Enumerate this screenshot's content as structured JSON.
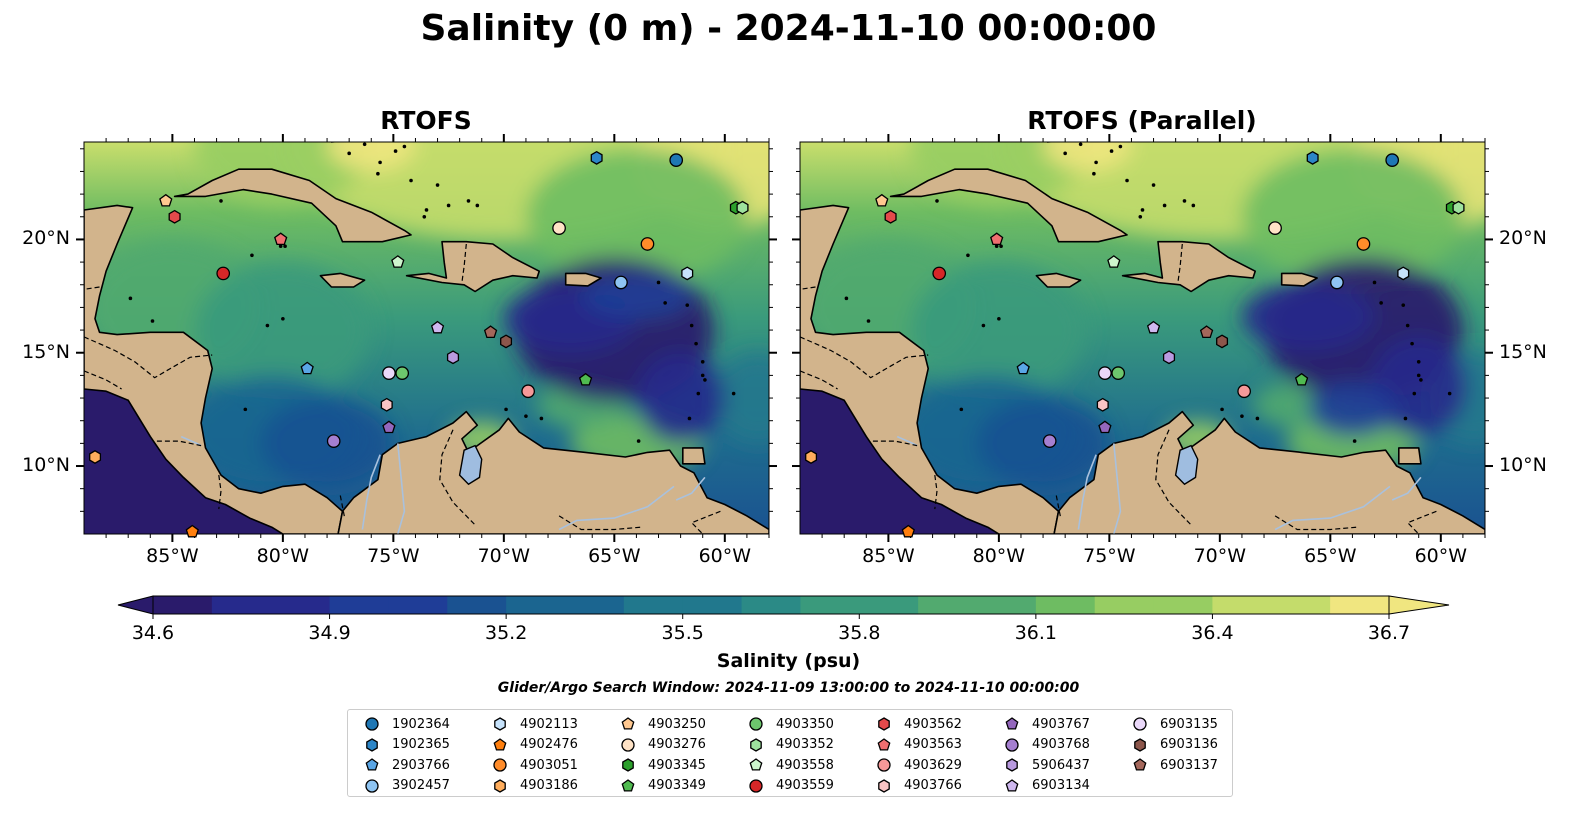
{
  "title": "Salinity (0 m) - 2024-11-10 00:00:00",
  "panels": [
    {
      "title": "RTOFS"
    },
    {
      "title": "RTOFS (Parallel)"
    }
  ],
  "map": {
    "lon_range": [
      -89,
      -58
    ],
    "lat_range": [
      7,
      24.3
    ],
    "lon_ticks": [
      "85°W",
      "80°W",
      "75°W",
      "70°W",
      "65°W",
      "60°W"
    ],
    "lat_ticks": [
      "10°N",
      "15°N",
      "20°N"
    ],
    "colors": {
      "land": "#d2b48c",
      "lake": "#9fbde0",
      "river": "#a9c1dd",
      "coast": "#000000"
    }
  },
  "colorbar": {
    "min": 34.6,
    "max": 36.7,
    "ticks": [
      "34.6",
      "34.9",
      "35.2",
      "35.5",
      "35.8",
      "36.1",
      "36.4",
      "36.7"
    ],
    "label": "Salinity (psu)",
    "colormap": [
      "#2a1b6b",
      "#262a8c",
      "#1f3d97",
      "#1a5291",
      "#1b6590",
      "#21788d",
      "#2b8a86",
      "#3a9a7c",
      "#52aa6f",
      "#6ebc62",
      "#97cd62",
      "#c4dc6b",
      "#f0e680"
    ]
  },
  "search_window": "Glider/Argo Search Window: 2024-11-09 13:00:00 to 2024-11-10 00:00:00",
  "floats": [
    {
      "id": "1902364",
      "marker": "circle",
      "color": "#1f77b4",
      "lon": -62.2,
      "lat": 23.5
    },
    {
      "id": "1902365",
      "marker": "hexagon",
      "color": "#2c86c8",
      "lon": -65.8,
      "lat": 23.6
    },
    {
      "id": "2903766",
      "marker": "pentagon",
      "color": "#5aa6e6",
      "lon": -78.9,
      "lat": 14.3
    },
    {
      "id": "3902457",
      "marker": "circle",
      "color": "#8ec4f2",
      "lon": -64.7,
      "lat": 18.1
    },
    {
      "id": "4902113",
      "marker": "hexagon",
      "color": "#c6e2fb",
      "lon": -61.7,
      "lat": 18.5
    },
    {
      "id": "4902476",
      "marker": "pentagon",
      "color": "#ff7f0e",
      "lon": -84.1,
      "lat": 7.1
    },
    {
      "id": "4903051",
      "marker": "circle",
      "color": "#ff8c2a",
      "lon": -63.5,
      "lat": 19.8
    },
    {
      "id": "4903186",
      "marker": "hexagon",
      "color": "#ffad5c",
      "lon": -88.5,
      "lat": 10.4
    },
    {
      "id": "4903250",
      "marker": "pentagon",
      "color": "#ffc890",
      "lon": -85.3,
      "lat": 21.7
    },
    {
      "id": "4903276",
      "marker": "circle",
      "color": "#ffe3c6",
      "lon": -67.5,
      "lat": 20.5
    },
    {
      "id": "4903345",
      "marker": "hexagon",
      "color": "#2ca02c",
      "lon": -59.5,
      "lat": 21.4
    },
    {
      "id": "4903349",
      "marker": "pentagon",
      "color": "#50bb50",
      "lon": -66.3,
      "lat": 13.8
    },
    {
      "id": "4903350",
      "marker": "circle",
      "color": "#6dc76d",
      "lon": -74.6,
      "lat": 14.1
    },
    {
      "id": "4903352",
      "marker": "hexagon",
      "color": "#9ee29e",
      "lon": -59.2,
      "lat": 21.4
    },
    {
      "id": "4903558",
      "marker": "pentagon",
      "color": "#cdf5cd",
      "lon": -74.8,
      "lat": 19.0
    },
    {
      "id": "4903559",
      "marker": "circle",
      "color": "#d62728",
      "lon": -82.7,
      "lat": 18.5
    },
    {
      "id": "4903562",
      "marker": "hexagon",
      "color": "#e44a4b",
      "lon": -84.9,
      "lat": 21.0
    },
    {
      "id": "4903563",
      "marker": "pentagon",
      "color": "#ef6f70",
      "lon": -80.1,
      "lat": 20.0
    },
    {
      "id": "4903629",
      "marker": "circle",
      "color": "#f59999",
      "lon": -68.9,
      "lat": 13.3
    },
    {
      "id": "4903766",
      "marker": "hexagon",
      "color": "#fbc5c5",
      "lon": -75.3,
      "lat": 12.7
    },
    {
      "id": "4903767",
      "marker": "pentagon",
      "color": "#9467bd",
      "lon": -75.2,
      "lat": 11.7
    },
    {
      "id": "4903768",
      "marker": "circle",
      "color": "#a57fd0",
      "lon": -77.7,
      "lat": 11.1
    },
    {
      "id": "5906437",
      "marker": "hexagon",
      "color": "#b99ae0",
      "lon": -72.3,
      "lat": 14.8
    },
    {
      "id": "6903134",
      "marker": "pentagon",
      "color": "#cfb8ef",
      "lon": -73.0,
      "lat": 16.1
    },
    {
      "id": "6903135",
      "marker": "circle",
      "color": "#ead8f9",
      "lon": -75.2,
      "lat": 14.1
    },
    {
      "id": "6903136",
      "marker": "hexagon",
      "color": "#8c564b",
      "lon": -69.9,
      "lat": 15.5
    },
    {
      "id": "6903137",
      "marker": "pentagon",
      "color": "#a4675b",
      "lon": -70.6,
      "lat": 15.9
    }
  ]
}
